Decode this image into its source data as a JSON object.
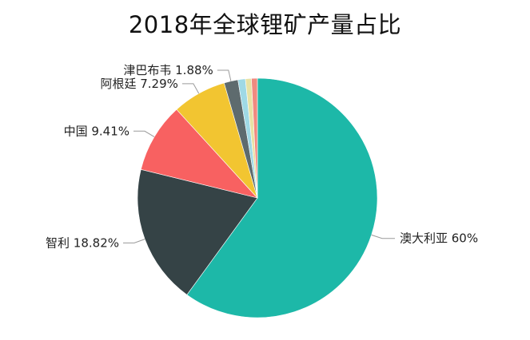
{
  "chart_data": {
    "type": "pie",
    "title": "2018年全球锂矿产量占比",
    "unit": "%",
    "legend": "none",
    "slices": [
      {
        "name": "澳大利亚",
        "value": 60,
        "label": "60%",
        "color": "#1db8a8",
        "labeled": true,
        "side": "right"
      },
      {
        "name": "智利",
        "value": 18.82,
        "label": "18.82%",
        "color": "#354346",
        "labeled": true,
        "side": "left"
      },
      {
        "name": "中国",
        "value": 9.41,
        "label": "9.41%",
        "color": "#f86161",
        "labeled": true,
        "side": "left"
      },
      {
        "name": "阿根廷",
        "value": 7.29,
        "label": "7.29%",
        "color": "#f2c531",
        "labeled": true,
        "side": "left"
      },
      {
        "name": "津巴布韦",
        "value": 1.88,
        "label": "1.88%",
        "color": "#5e6b6e",
        "labeled": true,
        "side": "left"
      },
      {
        "name": "",
        "value": 1.0,
        "label": "",
        "color": "#9fd9e5",
        "labeled": false
      },
      {
        "name": "",
        "value": 0.8,
        "label": "",
        "color": "#e7e2a4",
        "labeled": false
      },
      {
        "name": "",
        "value": 0.8,
        "label": "",
        "color": "#f08a80",
        "labeled": false
      }
    ]
  }
}
